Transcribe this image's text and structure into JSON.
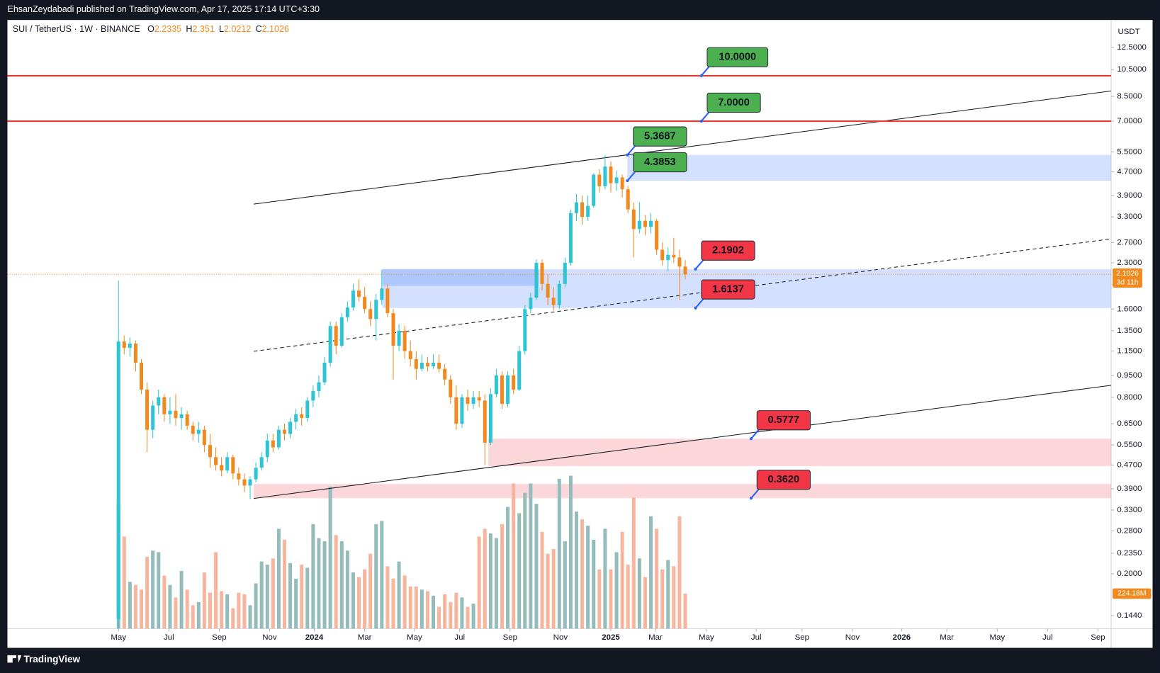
{
  "header": {
    "published": "EhsanZeydabadi published on TradingView.com, Apr 17, 2025 17:14 UTC+3:30"
  },
  "footer": {
    "brand": "TradingView"
  },
  "chart_data": {
    "type": "candlestick",
    "symbol": "SUI / TetherUS · 1W · BINANCE",
    "ohlc_letters": [
      "O",
      "H",
      "L",
      "C"
    ],
    "currency": "USDT",
    "countdown": "3d 11h",
    "log_scale": true,
    "grid": false,
    "up_color": "#2ec4d4",
    "down_color": "#f0891e",
    "volume_up_color": "#93bcba",
    "volume_down_color": "#f7b59d",
    "ylim": [
      0.13,
      15.5
    ],
    "xlim": [
      -19.4,
      173.4
    ],
    "vlim": [
      0,
      3900
    ],
    "yticks": [
      {
        "value": 12.5,
        "label": "12.5000"
      },
      {
        "value": 10.5,
        "label": "10.5000"
      },
      {
        "value": 8.5,
        "label": "8.5000"
      },
      {
        "value": 7,
        "label": "7.0000"
      },
      {
        "value": 5.5,
        "label": "5.5000"
      },
      {
        "value": 4.7,
        "label": "4.7000"
      },
      {
        "value": 3.9,
        "label": "3.9000"
      },
      {
        "value": 3.3,
        "label": "3.3000"
      },
      {
        "value": 2.7,
        "label": "2.7000"
      },
      {
        "value": 2.3,
        "label": "2.3000"
      },
      {
        "value": 1.6,
        "label": "1.6000"
      },
      {
        "value": 1.35,
        "label": "1.3500"
      },
      {
        "value": 1.15,
        "label": "1.1500"
      },
      {
        "value": 0.95,
        "label": "0.9500"
      },
      {
        "value": 0.8,
        "label": "0.8000"
      },
      {
        "value": 0.65,
        "label": "0.6500"
      },
      {
        "value": 0.55,
        "label": "0.5500"
      },
      {
        "value": 0.47,
        "label": "0.4700"
      },
      {
        "value": 0.39,
        "label": "0.3900"
      },
      {
        "value": 0.33,
        "label": "0.3300"
      },
      {
        "value": 0.28,
        "label": "0.2800"
      },
      {
        "value": 0.235,
        "label": "0.2350"
      },
      {
        "value": 0.2,
        "label": "0.2000"
      },
      {
        "value": 0.144,
        "label": "0.1440"
      }
    ],
    "xticks": [
      {
        "value": 0,
        "label": "May"
      },
      {
        "value": 8.8,
        "label": "Jul"
      },
      {
        "value": 17.6,
        "label": "Sep"
      },
      {
        "value": 26.4,
        "label": "Nov"
      },
      {
        "value": 34.2,
        "label": "2024"
      },
      {
        "value": 43.0,
        "label": "Mar"
      },
      {
        "value": 51.7,
        "label": "May"
      },
      {
        "value": 59.6,
        "label": "Jul"
      },
      {
        "value": 68.4,
        "label": "Sep"
      },
      {
        "value": 77.2,
        "label": "Nov"
      },
      {
        "value": 86.0,
        "label": "2025"
      },
      {
        "value": 93.8,
        "label": "Mar"
      },
      {
        "value": 102.7,
        "label": "May"
      },
      {
        "value": 111.4,
        "label": "Jul"
      },
      {
        "value": 119.4,
        "label": "Sep"
      },
      {
        "value": 128.2,
        "label": "Nov"
      },
      {
        "value": 136.8,
        "label": "2026"
      },
      {
        "value": 144.7,
        "label": "Mar"
      },
      {
        "value": 153.5,
        "label": "May"
      },
      {
        "value": 162.3,
        "label": "Jul"
      },
      {
        "value": 171.1,
        "label": "Sep"
      }
    ],
    "candles": [
      [
        0.14,
        2.0,
        0.13,
        1.24
      ],
      [
        1.24,
        1.3,
        1.12,
        1.18
      ],
      [
        1.18,
        1.28,
        1.1,
        1.22
      ],
      [
        1.22,
        1.25,
        0.98,
        1.05
      ],
      [
        1.05,
        1.08,
        0.82,
        0.85
      ],
      [
        0.85,
        0.9,
        0.52,
        0.62
      ],
      [
        0.62,
        0.78,
        0.58,
        0.75
      ],
      [
        0.75,
        0.85,
        0.7,
        0.8
      ],
      [
        0.8,
        0.82,
        0.66,
        0.7
      ],
      [
        0.7,
        0.8,
        0.65,
        0.72
      ],
      [
        0.72,
        0.82,
        0.64,
        0.68
      ],
      [
        0.68,
        0.74,
        0.62,
        0.7
      ],
      [
        0.7,
        0.72,
        0.62,
        0.64
      ],
      [
        0.64,
        0.66,
        0.57,
        0.6
      ],
      [
        0.6,
        0.66,
        0.56,
        0.62
      ],
      [
        0.62,
        0.64,
        0.52,
        0.55
      ],
      [
        0.55,
        0.6,
        0.46,
        0.5
      ],
      [
        0.5,
        0.54,
        0.45,
        0.47
      ],
      [
        0.47,
        0.5,
        0.43,
        0.45
      ],
      [
        0.45,
        0.52,
        0.44,
        0.5
      ],
      [
        0.5,
        0.51,
        0.42,
        0.44
      ],
      [
        0.44,
        0.46,
        0.4,
        0.42
      ],
      [
        0.42,
        0.44,
        0.38,
        0.4
      ],
      [
        0.4,
        0.43,
        0.36,
        0.42
      ],
      [
        0.42,
        0.48,
        0.41,
        0.46
      ],
      [
        0.46,
        0.52,
        0.45,
        0.5
      ],
      [
        0.5,
        0.6,
        0.48,
        0.57
      ],
      [
        0.57,
        0.6,
        0.52,
        0.54
      ],
      [
        0.54,
        0.64,
        0.53,
        0.62
      ],
      [
        0.62,
        0.65,
        0.57,
        0.6
      ],
      [
        0.6,
        0.68,
        0.58,
        0.66
      ],
      [
        0.66,
        0.73,
        0.62,
        0.7
      ],
      [
        0.7,
        0.74,
        0.64,
        0.68
      ],
      [
        0.68,
        0.8,
        0.66,
        0.78
      ],
      [
        0.78,
        0.88,
        0.74,
        0.84
      ],
      [
        0.84,
        0.95,
        0.8,
        0.9
      ],
      [
        0.9,
        1.1,
        0.88,
        1.05
      ],
      [
        1.05,
        1.45,
        1.02,
        1.4
      ],
      [
        1.4,
        1.45,
        1.12,
        1.2
      ],
      [
        1.2,
        1.55,
        1.18,
        1.5
      ],
      [
        1.5,
        1.7,
        1.45,
        1.62
      ],
      [
        1.62,
        1.95,
        1.58,
        1.85
      ],
      [
        1.85,
        2.02,
        1.7,
        1.76
      ],
      [
        1.76,
        1.9,
        1.55,
        1.6
      ],
      [
        1.6,
        1.7,
        1.4,
        1.48
      ],
      [
        1.48,
        1.8,
        1.25,
        1.72
      ],
      [
        1.72,
        2.18,
        1.65,
        1.88
      ],
      [
        1.88,
        1.95,
        1.5,
        1.55
      ],
      [
        1.55,
        1.6,
        0.92,
        1.2
      ],
      [
        1.2,
        1.42,
        1.15,
        1.35
      ],
      [
        1.35,
        1.4,
        1.08,
        1.15
      ],
      [
        1.15,
        1.25,
        1.02,
        1.08
      ],
      [
        1.08,
        1.15,
        0.92,
        1.0
      ],
      [
        1.0,
        1.12,
        0.98,
        1.05
      ],
      [
        1.05,
        1.1,
        0.98,
        1.02
      ],
      [
        1.02,
        1.12,
        1.0,
        1.05
      ],
      [
        1.05,
        1.12,
        0.97,
        1.0
      ],
      [
        1.0,
        1.04,
        0.88,
        0.92
      ],
      [
        0.92,
        0.95,
        0.76,
        0.8
      ],
      [
        0.8,
        0.88,
        0.62,
        0.65
      ],
      [
        0.65,
        0.82,
        0.63,
        0.8
      ],
      [
        0.8,
        0.85,
        0.72,
        0.76
      ],
      [
        0.76,
        0.84,
        0.73,
        0.8
      ],
      [
        0.8,
        0.84,
        0.74,
        0.78
      ],
      [
        0.78,
        0.82,
        0.47,
        0.56
      ],
      [
        0.56,
        0.86,
        0.55,
        0.82
      ],
      [
        0.82,
        1.0,
        0.8,
        0.95
      ],
      [
        0.95,
        0.98,
        0.73,
        0.76
      ],
      [
        0.76,
        0.98,
        0.74,
        0.95
      ],
      [
        0.95,
        1.0,
        0.82,
        0.85
      ],
      [
        0.85,
        1.2,
        0.84,
        1.15
      ],
      [
        1.15,
        1.65,
        1.12,
        1.6
      ],
      [
        1.6,
        1.82,
        1.55,
        1.75
      ],
      [
        1.75,
        2.36,
        1.72,
        2.3
      ],
      [
        2.3,
        2.36,
        1.85,
        1.95
      ],
      [
        1.95,
        2.1,
        1.65,
        1.75
      ],
      [
        1.75,
        1.9,
        1.58,
        1.65
      ],
      [
        1.65,
        2.0,
        1.6,
        1.95
      ],
      [
        1.95,
        2.4,
        1.9,
        2.3
      ],
      [
        2.3,
        3.5,
        2.25,
        3.4
      ],
      [
        3.4,
        3.95,
        3.2,
        3.7
      ],
      [
        3.7,
        3.9,
        3.1,
        3.3
      ],
      [
        3.3,
        3.9,
        3.2,
        3.6
      ],
      [
        3.6,
        4.65,
        3.55,
        4.6
      ],
      [
        4.6,
        4.8,
        4.0,
        4.2
      ],
      [
        4.2,
        5.37,
        4.1,
        4.9
      ],
      [
        4.9,
        5.1,
        4.0,
        4.3
      ],
      [
        4.3,
        4.75,
        4.05,
        4.5
      ],
      [
        4.5,
        4.6,
        3.85,
        4.1
      ],
      [
        4.1,
        4.2,
        3.4,
        3.5
      ],
      [
        3.5,
        3.7,
        2.4,
        3.0
      ],
      [
        3.0,
        3.7,
        2.9,
        3.2
      ],
      [
        3.2,
        3.35,
        2.85,
        3.05
      ],
      [
        3.05,
        3.4,
        2.9,
        3.2
      ],
      [
        3.2,
        3.25,
        2.45,
        2.55
      ],
      [
        2.55,
        2.7,
        2.25,
        2.35
      ],
      [
        2.35,
        2.6,
        2.15,
        2.45
      ],
      [
        2.45,
        2.8,
        2.3,
        2.4
      ],
      [
        2.4,
        2.55,
        1.72,
        2.2335
      ],
      [
        2.2335,
        2.351,
        2.0212,
        2.1026
      ]
    ],
    "volumes": [
      805,
      590,
      300,
      280,
      250,
      460,
      500,
      490,
      340,
      280,
      200,
      370,
      250,
      150,
      170,
      360,
      230,
      490,
      240,
      220,
      130,
      230,
      220,
      150,
      290,
      430,
      410,
      450,
      640,
      570,
      420,
      320,
      410,
      390,
      670,
      580,
      560,
      910,
      600,
      560,
      500,
      360,
      330,
      380,
      480,
      670,
      690,
      400,
      320,
      430,
      340,
      270,
      270,
      250,
      240,
      210,
      140,
      220,
      170,
      230,
      200,
      140,
      160,
      590,
      640,
      610,
      580,
      670,
      780,
      930,
      740,
      870,
      930,
      800,
      620,
      480,
      510,
      960,
      560,
      980,
      750,
      700,
      660,
      570,
      380,
      640,
      380,
      490,
      620,
      410,
      840,
      450,
      330,
      720,
      640,
      380,
      440,
      400,
      720,
      224.18
    ],
    "volume_last_label": "224.18M",
    "levels": [
      {
        "value": 10,
        "label": "10.0000",
        "at": 101.8,
        "color": "#4caf50",
        "line_color": "#e53935"
      },
      {
        "value": 7,
        "label": "7.0000",
        "at": 101.8,
        "color": "#4caf50",
        "line_color": "#e53935"
      },
      {
        "value": 5.3687,
        "label": "5.3687",
        "at": 88.9,
        "color": "#4caf50"
      },
      {
        "value": 4.3853,
        "label": "4.3853",
        "at": 88.9,
        "color": "#4caf50"
      },
      {
        "value": 2.1902,
        "label": "2.1902",
        "at": 100.8,
        "color": "#f23645"
      },
      {
        "value": 1.6137,
        "label": "1.6137",
        "at": 100.8,
        "color": "#f23645"
      },
      {
        "value": 0.5777,
        "label": "0.5777",
        "at": 110.5,
        "color": "#f23645"
      },
      {
        "value": 0.362,
        "label": "0.3620",
        "at": 110.5,
        "color": "#f23645"
      }
    ],
    "zones": [
      {
        "start": 88.9,
        "top": 5.3687,
        "bottom": 4.3853,
        "color": "rgba(41,98,255,0.2)"
      },
      {
        "start": 46.1,
        "top": 2.1902,
        "bottom": 1.6137,
        "color": "rgba(41,98,255,0.2)"
      },
      {
        "start": 46.1,
        "end": 73.4,
        "top": 2.1902,
        "bottom": 1.92,
        "color": "rgba(41,98,255,0.2)"
      },
      {
        "start": 64.6,
        "top": 0.5777,
        "bottom": 0.466,
        "color": "rgba(242,54,69,0.2)"
      },
      {
        "start": 23.6,
        "top": 0.405,
        "bottom": 0.362,
        "color": "rgba(242,54,69,0.2)"
      }
    ]
  }
}
